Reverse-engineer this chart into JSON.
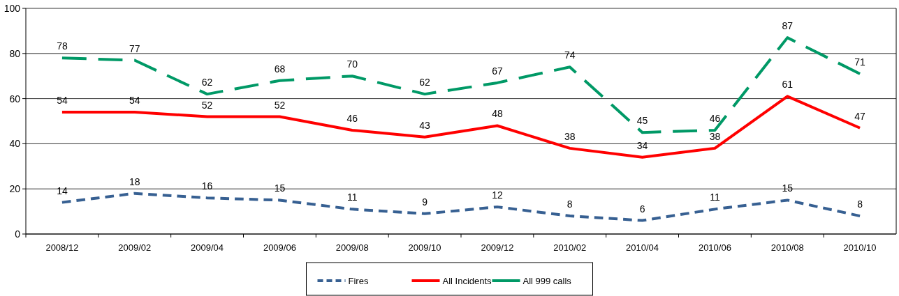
{
  "chart_data": {
    "type": "line",
    "categories": [
      "2008/12",
      "2009/02",
      "2009/04",
      "2009/06",
      "2009/08",
      "2009/10",
      "2009/12",
      "2010/02",
      "2010/04",
      "2010/06",
      "2010/08",
      "2010/10"
    ],
    "series": [
      {
        "name": "Fires",
        "color": "#376092",
        "line_style": "dashed",
        "values": [
          14,
          18,
          16,
          15,
          11,
          9,
          12,
          8,
          6,
          11,
          15,
          8
        ]
      },
      {
        "name": "All Incidents",
        "color": "#ff0000",
        "line_style": "solid",
        "values": [
          54,
          54,
          52,
          52,
          46,
          43,
          48,
          38,
          34,
          38,
          61,
          47
        ]
      },
      {
        "name": "All 999 calls",
        "color": "#009966",
        "line_style": "dashed",
        "values": [
          78,
          77,
          62,
          68,
          70,
          62,
          67,
          74,
          45,
          46,
          87,
          71
        ]
      }
    ],
    "ylim": [
      0,
      100
    ],
    "yticks": [
      0,
      20,
      40,
      60,
      80,
      100
    ],
    "grid": "y",
    "legend": "bottom",
    "data_labels": true,
    "marker": "none"
  }
}
